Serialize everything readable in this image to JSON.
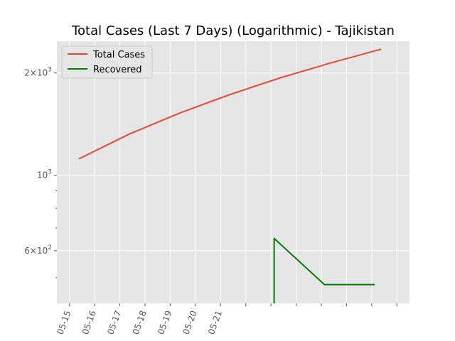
{
  "chart_data": {
    "type": "line",
    "title": "Total Cases (Last 7 Days) (Logarithmic) - Tajikistan",
    "xlabel": "",
    "ylabel": "",
    "y_scale": "log",
    "grid": true,
    "legend_position": "top-left",
    "xlim": [
      "2020-05-14T12:00",
      "2020-05-28T12:00"
    ],
    "ylim": [
      420,
      2480
    ],
    "x_tick_dates": [
      "2020-05-15",
      "2020-05-16",
      "2020-05-17",
      "2020-05-18",
      "2020-05-19",
      "2020-05-20",
      "2020-05-21",
      "2020-05-22",
      "2020-05-23",
      "2020-05-24",
      "2020-05-25",
      "2020-05-26",
      "2020-05-27",
      "2020-05-28"
    ],
    "x_tick_labels": [
      "05-15",
      "05-16",
      "05-17",
      "05-18",
      "05-19",
      "05-20",
      "05-21",
      "",
      "",
      "",
      "",
      "",
      "",
      ""
    ],
    "y_ticks": [
      {
        "value": 600,
        "mantissa": "6",
        "exp": "2"
      },
      {
        "value": 1000,
        "mantissa": "",
        "exp": "3"
      },
      {
        "value": 2000,
        "mantissa": "2",
        "exp": "3"
      }
    ],
    "y_minor_ticks": [
      500,
      700,
      800,
      900
    ],
    "series": [
      {
        "name": "Total Cases",
        "color": "#E24A33",
        "points": [
          {
            "x": "2020-05-15T09:00",
            "y": 1118
          },
          {
            "x": "2020-05-17T09:00",
            "y": 1322
          },
          {
            "x": "2020-05-19T09:00",
            "y": 1524
          },
          {
            "x": "2020-05-21T09:00",
            "y": 1729
          },
          {
            "x": "2020-05-23T09:00",
            "y": 1936
          },
          {
            "x": "2020-05-25T09:00",
            "y": 2140
          },
          {
            "x": "2020-05-27T09:00",
            "y": 2350
          }
        ]
      },
      {
        "name": "Recovered",
        "color": "#008000",
        "points": [
          {
            "x": "2020-05-23T03:00",
            "y": 418
          },
          {
            "x": "2020-05-23T03:00",
            "y": 652
          },
          {
            "x": "2020-05-25T03:00",
            "y": 477
          },
          {
            "x": "2020-05-27T03:00",
            "y": 477
          }
        ]
      }
    ]
  }
}
